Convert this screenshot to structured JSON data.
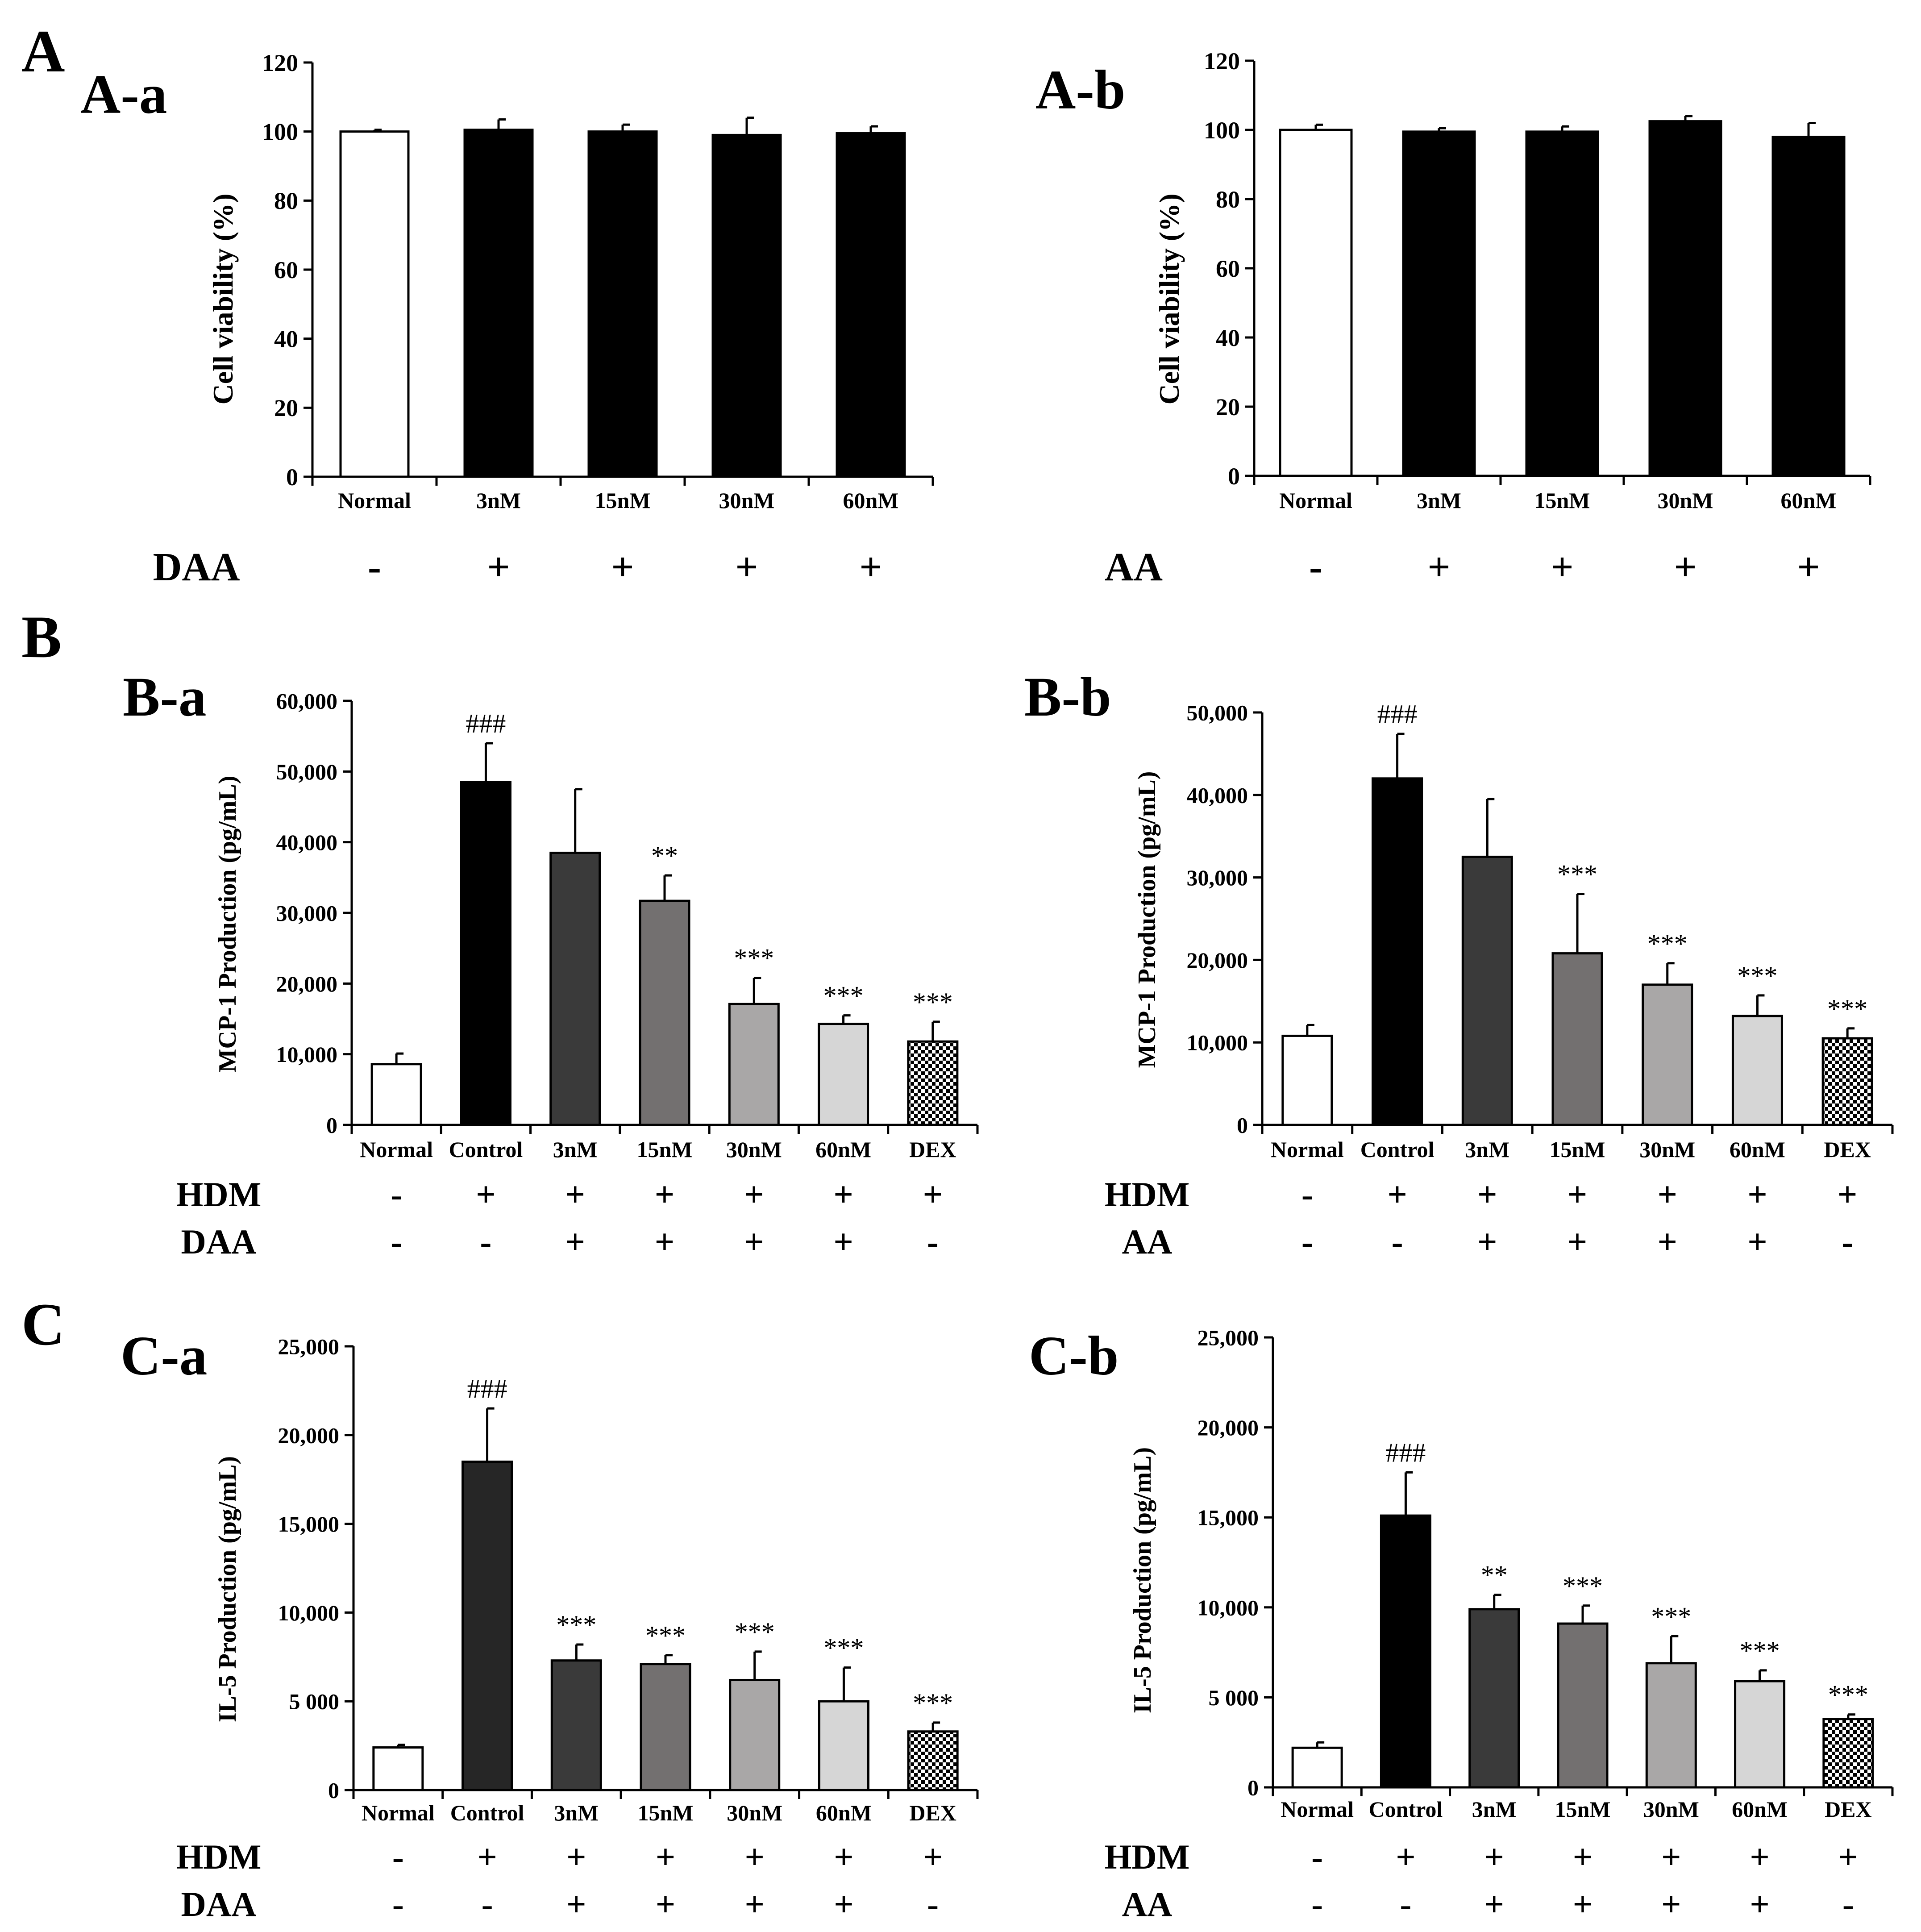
{
  "sections": {
    "A": "A",
    "B": "B",
    "C": "C"
  },
  "patterns": {
    "dex": "checker"
  },
  "chart_data": [
    {
      "id": "A-a",
      "panel_label": "A-a",
      "type": "bar",
      "ylabel": "Cell viability (%)",
      "ylim": [
        0,
        120
      ],
      "yticks": [
        0,
        20,
        40,
        60,
        80,
        100,
        120
      ],
      "ytick_labels": [
        "0",
        "20",
        "40",
        "60",
        "80",
        "100",
        "120"
      ],
      "categories": [
        "Normal",
        "3nM",
        "15nM",
        "30nM",
        "60nM"
      ],
      "values": [
        100,
        100.5,
        100,
        99,
        99.5
      ],
      "errors": [
        0.5,
        3,
        2,
        5,
        2
      ],
      "annotations": [
        "",
        "",
        "",
        "",
        ""
      ],
      "fills": [
        "#ffffff",
        "#000000",
        "#000000",
        "#000000",
        "#000000"
      ],
      "factors": [
        {
          "name": "DAA",
          "marks": [
            "-",
            "+",
            "+",
            "+",
            "+"
          ]
        }
      ]
    },
    {
      "id": "A-b",
      "panel_label": "A-b",
      "type": "bar",
      "ylabel": "Cell viability (%)",
      "ylim": [
        0,
        120
      ],
      "yticks": [
        0,
        20,
        40,
        60,
        80,
        100,
        120
      ],
      "ytick_labels": [
        "0",
        "20",
        "40",
        "60",
        "80",
        "100",
        "120"
      ],
      "categories": [
        "Normal",
        "3nM",
        "15nM",
        "30nM",
        "60nM"
      ],
      "values": [
        100,
        99.5,
        99.5,
        102.5,
        98
      ],
      "errors": [
        1.5,
        1,
        1.5,
        1.5,
        4
      ],
      "annotations": [
        "",
        "",
        "",
        "",
        ""
      ],
      "fills": [
        "#ffffff",
        "#000000",
        "#000000",
        "#000000",
        "#000000"
      ],
      "factors": [
        {
          "name": "AA",
          "marks": [
            "-",
            "+",
            "+",
            "+",
            "+"
          ]
        }
      ]
    },
    {
      "id": "B-a",
      "panel_label": "B-a",
      "type": "bar",
      "ylabel": "MCP-1 Production (pg/mL)",
      "ylim": [
        0,
        60000
      ],
      "yticks": [
        0,
        10000,
        20000,
        30000,
        40000,
        50000,
        60000
      ],
      "ytick_labels": [
        "0",
        "10,000",
        "20,000",
        "30,000",
        "40,000",
        "50,000",
        "60,000"
      ],
      "categories": [
        "Normal",
        "Control",
        "3nM",
        "15nM",
        "30nM",
        "60nM",
        "DEX"
      ],
      "values": [
        8600,
        48500,
        38500,
        31700,
        17100,
        14300,
        11800
      ],
      "errors": [
        1500,
        5500,
        9000,
        3600,
        3700,
        1200,
        2800
      ],
      "annotations": [
        "",
        "###",
        "",
        "**",
        "***",
        "***",
        "***"
      ],
      "fills": [
        "#ffffff",
        "#000000",
        "#3a3a3a",
        "#737070",
        "#a9a7a7",
        "#d6d6d6",
        "checker"
      ],
      "factors": [
        {
          "name": "HDM",
          "marks": [
            "-",
            "+",
            "+",
            "+",
            "+",
            "+",
            "+"
          ]
        },
        {
          "name": "DAA",
          "marks": [
            "-",
            "-",
            "+",
            "+",
            "+",
            "+",
            "-"
          ]
        }
      ]
    },
    {
      "id": "B-b",
      "panel_label": "B-b",
      "type": "bar",
      "ylabel": "MCP-1 Production (pg/mL)",
      "ylim": [
        0,
        50000
      ],
      "yticks": [
        0,
        10000,
        20000,
        30000,
        40000,
        50000
      ],
      "ytick_labels": [
        "0",
        "10,000",
        "20,000",
        "30,000",
        "40,000",
        "50,000"
      ],
      "categories": [
        "Normal",
        "Control",
        "3nM",
        "15nM",
        "30nM",
        "60nM",
        "DEX"
      ],
      "values": [
        10800,
        42000,
        32500,
        20800,
        17000,
        13200,
        10500
      ],
      "errors": [
        1300,
        5400,
        7000,
        7200,
        2600,
        2500,
        1200
      ],
      "annotations": [
        "",
        "###",
        "",
        "***",
        "***",
        "***",
        "***"
      ],
      "fills": [
        "#ffffff",
        "#000000",
        "#3a3a3a",
        "#737070",
        "#a9a7a7",
        "#d6d6d6",
        "checker"
      ],
      "factors": [
        {
          "name": "HDM",
          "marks": [
            "-",
            "+",
            "+",
            "+",
            "+",
            "+",
            "+"
          ]
        },
        {
          "name": "AA",
          "marks": [
            "-",
            "-",
            "+",
            "+",
            "+",
            "+",
            "-"
          ]
        }
      ]
    },
    {
      "id": "C-a",
      "panel_label": "C-a",
      "type": "bar",
      "ylabel": "IL-5 Production (pg/mL)",
      "ylim": [
        0,
        25000
      ],
      "yticks": [
        0,
        5000,
        10000,
        15000,
        20000,
        25000
      ],
      "ytick_labels": [
        "0",
        "5 000",
        "10,000",
        "15,000",
        "20,000",
        "25,000"
      ],
      "categories": [
        "Normal",
        "Control",
        "3nM",
        "15nM",
        "30nM",
        "60nM",
        "DEX"
      ],
      "values": [
        2400,
        18500,
        7300,
        7100,
        6200,
        5000,
        3300
      ],
      "errors": [
        150,
        3000,
        900,
        500,
        1600,
        1900,
        500
      ],
      "annotations": [
        "",
        "###",
        "***",
        "***",
        "***",
        "***",
        "***"
      ],
      "fills": [
        "#ffffff",
        "#262626",
        "#3a3a3a",
        "#737070",
        "#a9a7a7",
        "#d6d6d6",
        "checker"
      ],
      "factors": [
        {
          "name": "HDM",
          "marks": [
            "-",
            "+",
            "+",
            "+",
            "+",
            "+",
            "+"
          ]
        },
        {
          "name": "DAA",
          "marks": [
            "-",
            "-",
            "+",
            "+",
            "+",
            "+",
            "-"
          ]
        }
      ]
    },
    {
      "id": "C-b",
      "panel_label": "C-b",
      "type": "bar",
      "ylabel": "IL-5 Production (pg/mL)",
      "ylim": [
        0,
        25000
      ],
      "yticks": [
        0,
        5000,
        10000,
        15000,
        20000,
        25000
      ],
      "ytick_labels": [
        "0",
        "5 000",
        "10,000",
        "15,000",
        "20,000",
        "25,000"
      ],
      "categories": [
        "Normal",
        "Control",
        "3nM",
        "15nM",
        "30nM",
        "60nM",
        "DEX"
      ],
      "values": [
        2200,
        15100,
        9900,
        9100,
        6900,
        5900,
        3800
      ],
      "errors": [
        300,
        2400,
        800,
        1000,
        1500,
        600,
        250
      ],
      "annotations": [
        "",
        "###",
        "**",
        "***",
        "***",
        "***",
        "***"
      ],
      "fills": [
        "#ffffff",
        "#000000",
        "#3a3a3a",
        "#737070",
        "#a9a7a7",
        "#d6d6d6",
        "checker"
      ],
      "factors": [
        {
          "name": "HDM",
          "marks": [
            "-",
            "+",
            "+",
            "+",
            "+",
            "+",
            "+"
          ]
        },
        {
          "name": "AA",
          "marks": [
            "-",
            "-",
            "+",
            "+",
            "+",
            "+",
            "-"
          ]
        }
      ]
    }
  ]
}
